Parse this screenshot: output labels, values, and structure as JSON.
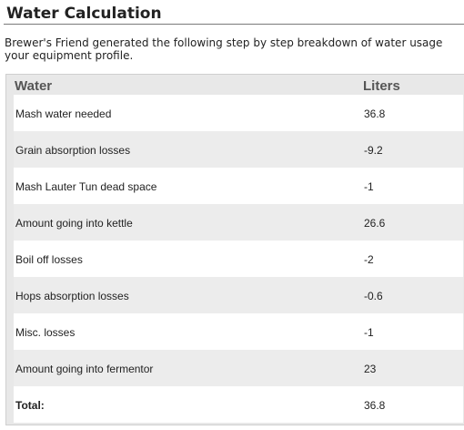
{
  "page": {
    "title": "Water Calculation",
    "intro_line1": "Brewer's Friend generated the following step by step breakdown of water usage",
    "intro_line2": "your equipment profile."
  },
  "table": {
    "headers": {
      "water": "Water",
      "liters": "Liters"
    },
    "rows": [
      {
        "label": "Mash water needed",
        "value": "36.8"
      },
      {
        "label": "Grain absorption losses",
        "value": "-9.2"
      },
      {
        "label": "Mash Lauter Tun dead space",
        "value": "-1"
      },
      {
        "label": "Amount going into kettle",
        "value": "26.6"
      },
      {
        "label": "Boil off losses",
        "value": "-2"
      },
      {
        "label": "Hops absorption losses",
        "value": "-0.6"
      },
      {
        "label": "Misc. losses",
        "value": "-1"
      },
      {
        "label": "Amount going into fermentor",
        "value": "23"
      }
    ],
    "total": {
      "label": "Total:",
      "value": "36.8"
    }
  }
}
